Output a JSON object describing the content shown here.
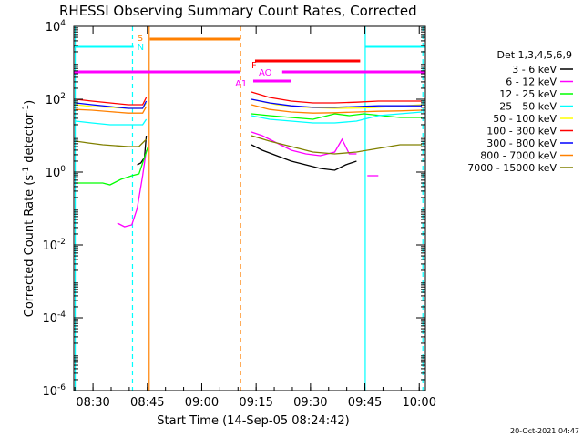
{
  "chart_data": {
    "type": "line",
    "title": "RHESSI Observing Summary Count Rates, Corrected",
    "xlabel": "Start Time (14-Sep-05 08:24:42)",
    "ylabel_parts": [
      "Corrected Count Rate (s",
      "-1",
      " detector",
      "-1",
      ")"
    ],
    "footer": "20-Oct-2021 04:47",
    "x_unit": "minutes after 08:24:42",
    "xlim": [
      0,
      97
    ],
    "ylim_log10": [
      -6,
      4
    ],
    "x_ticks": [
      {
        "t": 5.3,
        "label": "08:30"
      },
      {
        "t": 20.3,
        "label": "08:45"
      },
      {
        "t": 35.3,
        "label": "09:00"
      },
      {
        "t": 50.3,
        "label": "09:15"
      },
      {
        "t": 65.3,
        "label": "09:30"
      },
      {
        "t": 80.3,
        "label": "09:45"
      },
      {
        "t": 95.3,
        "label": "10:00"
      }
    ],
    "y_ticks": [
      {
        "exp": 4,
        "label": "10",
        "sup": "4"
      },
      {
        "exp": 2,
        "label": "10",
        "sup": "2"
      },
      {
        "exp": 0,
        "label": "10",
        "sup": "0"
      },
      {
        "exp": -2,
        "label": "10",
        "sup": "-2"
      },
      {
        "exp": -4,
        "label": "10",
        "sup": "-4"
      },
      {
        "exp": -6,
        "label": "10",
        "sup": "-6"
      }
    ],
    "legend_title": "Det 1,3,4,5,6,9",
    "series": [
      {
        "name": "3 - 6 keV",
        "color": "#000000",
        "segments": [
          [
            [
              17.5,
              0.2
            ],
            [
              18.5,
              0.25
            ],
            [
              19.5,
              0.4
            ],
            [
              20.0,
              1.0
            ]
          ],
          [
            [
              49.0,
              0.75
            ],
            [
              52,
              0.6
            ],
            [
              56,
              0.45
            ],
            [
              60,
              0.3
            ],
            [
              64,
              0.2
            ],
            [
              68,
              0.1
            ],
            [
              72,
              0.05
            ],
            [
              75,
              0.2
            ],
            [
              78,
              0.3
            ]
          ]
        ]
      },
      {
        "name": "6 - 12 keV",
        "color": "#ff00ff",
        "segments": [
          [
            [
              12.0,
              -1.4
            ],
            [
              14,
              -1.5
            ],
            [
              16,
              -1.45
            ],
            [
              17.5,
              -1.0
            ],
            [
              19,
              -0.1
            ],
            [
              20,
              0.6
            ]
          ],
          [
            [
              49.0,
              1.1
            ],
            [
              52,
              1.0
            ],
            [
              56,
              0.8
            ],
            [
              60,
              0.6
            ],
            [
              64,
              0.5
            ],
            [
              68,
              0.45
            ],
            [
              72,
              0.55
            ],
            [
              74,
              0.9
            ],
            [
              76,
              0.5
            ],
            [
              78,
              0.5
            ]
          ],
          [
            [
              81,
              -0.1
            ],
            [
              84,
              -0.1
            ]
          ]
        ]
      },
      {
        "name": "12 - 25 keV",
        "color": "#00ff00",
        "segments": [
          [
            [
              0.5,
              -0.3
            ],
            [
              4,
              -0.3
            ],
            [
              8,
              -0.3
            ],
            [
              10,
              -0.35
            ],
            [
              13,
              -0.2
            ],
            [
              16,
              -0.1
            ],
            [
              18,
              -0.05
            ],
            [
              19.5,
              0.4
            ],
            [
              20.5,
              0.7
            ]
          ],
          [
            [
              49.0,
              1.6
            ],
            [
              54,
              1.55
            ],
            [
              60,
              1.5
            ],
            [
              66,
              1.45
            ],
            [
              72,
              1.6
            ],
            [
              76,
              1.55
            ],
            [
              80,
              1.6
            ],
            [
              85,
              1.55
            ],
            [
              90,
              1.5
            ],
            [
              96,
              1.5
            ]
          ]
        ]
      },
      {
        "name": "25 - 50 keV",
        "color": "#00ffff",
        "segments": [
          [
            [
              0.5,
              1.4
            ],
            [
              5,
              1.35
            ],
            [
              10,
              1.3
            ],
            [
              15,
              1.3
            ],
            [
              19,
              1.3
            ],
            [
              20,
              1.45
            ]
          ],
          [
            [
              49.0,
              1.55
            ],
            [
              54,
              1.45
            ],
            [
              60,
              1.4
            ],
            [
              66,
              1.35
            ],
            [
              72,
              1.35
            ],
            [
              78,
              1.4
            ],
            [
              84,
              1.55
            ],
            [
              90,
              1.6
            ],
            [
              96,
              1.65
            ]
          ]
        ]
      },
      {
        "name": "50 - 100 keV",
        "color": "#ffff00",
        "segments": [
          [
            [
              0.5,
              1.85
            ],
            [
              5,
              1.8
            ],
            [
              10,
              1.78
            ],
            [
              15,
              1.75
            ],
            [
              19,
              1.75
            ],
            [
              20,
              1.9
            ]
          ],
          [
            [
              49.0,
              2.0
            ],
            [
              56,
              1.85
            ],
            [
              64,
              1.78
            ],
            [
              72,
              1.75
            ],
            [
              80,
              1.76
            ],
            [
              88,
              1.8
            ],
            [
              96,
              1.85
            ]
          ]
        ]
      },
      {
        "name": "100 - 300 keV",
        "color": "#ff0000",
        "segments": [
          [
            [
              0.5,
              2.0
            ],
            [
              5,
              1.95
            ],
            [
              10,
              1.9
            ],
            [
              15,
              1.85
            ],
            [
              19,
              1.85
            ],
            [
              20,
              2.05
            ]
          ],
          [
            [
              49.0,
              2.2
            ],
            [
              54,
              2.05
            ],
            [
              60,
              1.95
            ],
            [
              66,
              1.9
            ],
            [
              72,
              1.9
            ],
            [
              78,
              1.92
            ],
            [
              84,
              1.95
            ],
            [
              90,
              1.95
            ],
            [
              96,
              1.95
            ]
          ]
        ]
      },
      {
        "name": "300 - 800 keV",
        "color": "#0000ff",
        "segments": [
          [
            [
              0.5,
              1.9
            ],
            [
              5,
              1.85
            ],
            [
              10,
              1.8
            ],
            [
              15,
              1.75
            ],
            [
              19,
              1.75
            ],
            [
              20,
              1.95
            ]
          ],
          [
            [
              49.0,
              2.0
            ],
            [
              54,
              1.9
            ],
            [
              60,
              1.82
            ],
            [
              66,
              1.78
            ],
            [
              72,
              1.78
            ],
            [
              78,
              1.8
            ],
            [
              84,
              1.82
            ],
            [
              90,
              1.82
            ],
            [
              96,
              1.82
            ]
          ]
        ]
      },
      {
        "name": "800 - 7000 keV",
        "color": "#ff8000",
        "segments": [
          [
            [
              0.5,
              1.72
            ],
            [
              5,
              1.7
            ],
            [
              10,
              1.66
            ],
            [
              15,
              1.62
            ],
            [
              19,
              1.62
            ],
            [
              20,
              1.8
            ]
          ],
          [
            [
              49.0,
              1.85
            ],
            [
              54,
              1.72
            ],
            [
              60,
              1.65
            ],
            [
              66,
              1.62
            ],
            [
              72,
              1.63
            ],
            [
              78,
              1.65
            ],
            [
              84,
              1.67
            ],
            [
              90,
              1.68
            ],
            [
              96,
              1.7
            ]
          ]
        ]
      },
      {
        "name": "7000 - 15000 keV",
        "color": "#808000",
        "segments": [
          [
            [
              0.5,
              0.85
            ],
            [
              4,
              0.8
            ],
            [
              8,
              0.75
            ],
            [
              12,
              0.72
            ],
            [
              15,
              0.7
            ],
            [
              18,
              0.7
            ],
            [
              20,
              0.9
            ]
          ],
          [
            [
              49.0,
              1.0
            ],
            [
              54,
              0.85
            ],
            [
              60,
              0.7
            ],
            [
              66,
              0.55
            ],
            [
              72,
              0.5
            ],
            [
              78,
              0.55
            ],
            [
              84,
              0.65
            ],
            [
              90,
              0.75
            ],
            [
              96,
              0.75
            ]
          ]
        ]
      }
    ],
    "flag_labels": [
      {
        "text": "S",
        "color": "#ff8000",
        "t": 17.5,
        "y": 3.6
      },
      {
        "text": "N",
        "color": "#00ffff",
        "t": 17.5,
        "y": 3.35
      },
      {
        "text": "F",
        "color": "#ff0000",
        "t": 49.0,
        "y": 2.85
      },
      {
        "text": "AO",
        "color": "#ff00ff",
        "t": 51.0,
        "y": 2.65
      },
      {
        "text": "A1",
        "color": "#ff00ff",
        "t": 44.5,
        "y": 2.35
      }
    ],
    "flag_bars": [
      {
        "color": "#00ffff",
        "t0": 0,
        "t1": 16.5,
        "y": 3.45
      },
      {
        "color": "#00ffff",
        "t0": 80.5,
        "t1": 97,
        "y": 3.45
      },
      {
        "color": "#ff8000",
        "t0": 21,
        "t1": 46,
        "y": 3.65
      },
      {
        "color": "#ff0000",
        "t0": 50,
        "t1": 79,
        "y": 3.05
      },
      {
        "color": "#ff00ff",
        "t0": 0,
        "t1": 46,
        "y": 2.75
      },
      {
        "color": "#ff00ff",
        "t0": 57.5,
        "t1": 97,
        "y": 2.75
      },
      {
        "color": "#ff00ff",
        "t0": 49.5,
        "t1": 60,
        "y": 2.5
      }
    ],
    "vertical_lines": [
      {
        "t": 0.4,
        "color": "#00ffff",
        "style": "solid"
      },
      {
        "t": 16.2,
        "color": "#00ffff",
        "style": "dashed"
      },
      {
        "t": 20.8,
        "color": "#ff8000",
        "style": "solid"
      },
      {
        "t": 46.0,
        "color": "#ff8000",
        "style": "dashed"
      },
      {
        "t": 80.4,
        "color": "#00ffff",
        "style": "solid"
      },
      {
        "t": 96.3,
        "color": "#00ffff",
        "style": "dashed"
      }
    ]
  }
}
